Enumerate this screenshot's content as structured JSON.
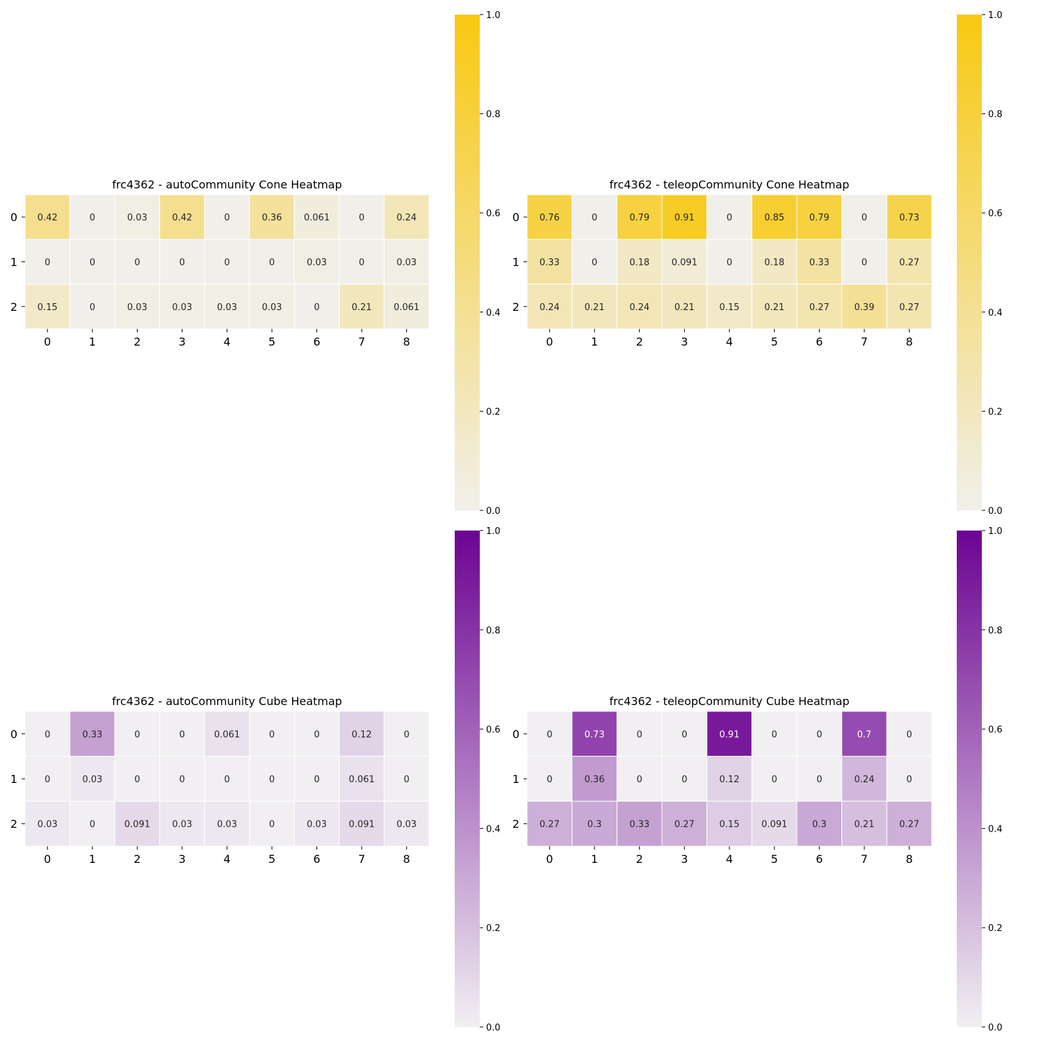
{
  "chart_data": [
    {
      "type": "heatmap",
      "title": "frc4362 - autoCommunity Cone Heatmap",
      "rows": [
        "0",
        "1",
        "2"
      ],
      "cols": [
        "0",
        "1",
        "2",
        "3",
        "4",
        "5",
        "6",
        "7",
        "8"
      ],
      "values": [
        [
          "0.42",
          "0",
          "0.03",
          "0.42",
          "0",
          "0.36",
          "0.061",
          "0",
          "0.24"
        ],
        [
          "0",
          "0",
          "0",
          "0",
          "0",
          "0",
          "0.03",
          "0",
          "0.03"
        ],
        [
          "0.15",
          "0",
          "0.03",
          "0.03",
          "0.03",
          "0.03",
          "0",
          "0.21",
          "0.061"
        ]
      ],
      "colorbar": {
        "range": [
          0,
          1
        ],
        "ticks": [
          "0.0",
          "0.2",
          "0.4",
          "0.6",
          "0.8",
          "1.0"
        ],
        "low_color": "#f1efea",
        "high_color": "#f8c911"
      }
    },
    {
      "type": "heatmap",
      "title": "frc4362 - teleopCommunity Cone Heatmap",
      "rows": [
        "0",
        "1",
        "2"
      ],
      "cols": [
        "0",
        "1",
        "2",
        "3",
        "4",
        "5",
        "6",
        "7",
        "8"
      ],
      "values": [
        [
          "0.76",
          "0",
          "0.79",
          "0.91",
          "0",
          "0.85",
          "0.79",
          "0",
          "0.73"
        ],
        [
          "0.33",
          "0",
          "0.18",
          "0.091",
          "0",
          "0.18",
          "0.33",
          "0",
          "0.27"
        ],
        [
          "0.24",
          "0.21",
          "0.24",
          "0.21",
          "0.15",
          "0.21",
          "0.27",
          "0.39",
          "0.27"
        ]
      ],
      "colorbar": {
        "range": [
          0,
          1
        ],
        "ticks": [
          "0.0",
          "0.2",
          "0.4",
          "0.6",
          "0.8",
          "1.0"
        ],
        "low_color": "#f1efea",
        "high_color": "#f8c911"
      }
    },
    {
      "type": "heatmap",
      "title": "frc4362 - autoCommunity Cube Heatmap",
      "rows": [
        "0",
        "1",
        "2"
      ],
      "cols": [
        "0",
        "1",
        "2",
        "3",
        "4",
        "5",
        "6",
        "7",
        "8"
      ],
      "values": [
        [
          "0",
          "0.33",
          "0",
          "0",
          "0.061",
          "0",
          "0",
          "0.12",
          "0"
        ],
        [
          "0",
          "0.03",
          "0",
          "0",
          "0",
          "0",
          "0",
          "0.061",
          "0"
        ],
        [
          "0.03",
          "0",
          "0.091",
          "0.03",
          "0.03",
          "0",
          "0.03",
          "0.091",
          "0.03"
        ]
      ],
      "colorbar": {
        "range": [
          0,
          1
        ],
        "ticks": [
          "0.0",
          "0.2",
          "0.4",
          "0.6",
          "0.8",
          "1.0"
        ],
        "low_color": "#f1eff2",
        "high_color": "#6c0492"
      }
    },
    {
      "type": "heatmap",
      "title": "frc4362 - teleopCommunity Cube Heatmap",
      "rows": [
        "0",
        "1",
        "2"
      ],
      "cols": [
        "0",
        "1",
        "2",
        "3",
        "4",
        "5",
        "6",
        "7",
        "8"
      ],
      "values": [
        [
          "0",
          "0.73",
          "0",
          "0",
          "0.91",
          "0",
          "0",
          "0.7",
          "0"
        ],
        [
          "0",
          "0.36",
          "0",
          "0",
          "0.12",
          "0",
          "0",
          "0.24",
          "0"
        ],
        [
          "0.27",
          "0.3",
          "0.33",
          "0.27",
          "0.15",
          "0.091",
          "0.3",
          "0.21",
          "0.27"
        ]
      ],
      "colorbar": {
        "range": [
          0,
          1
        ],
        "ticks": [
          "0.0",
          "0.2",
          "0.4",
          "0.6",
          "0.8",
          "1.0"
        ],
        "low_color": "#f1eff2",
        "high_color": "#6c0492"
      }
    }
  ]
}
